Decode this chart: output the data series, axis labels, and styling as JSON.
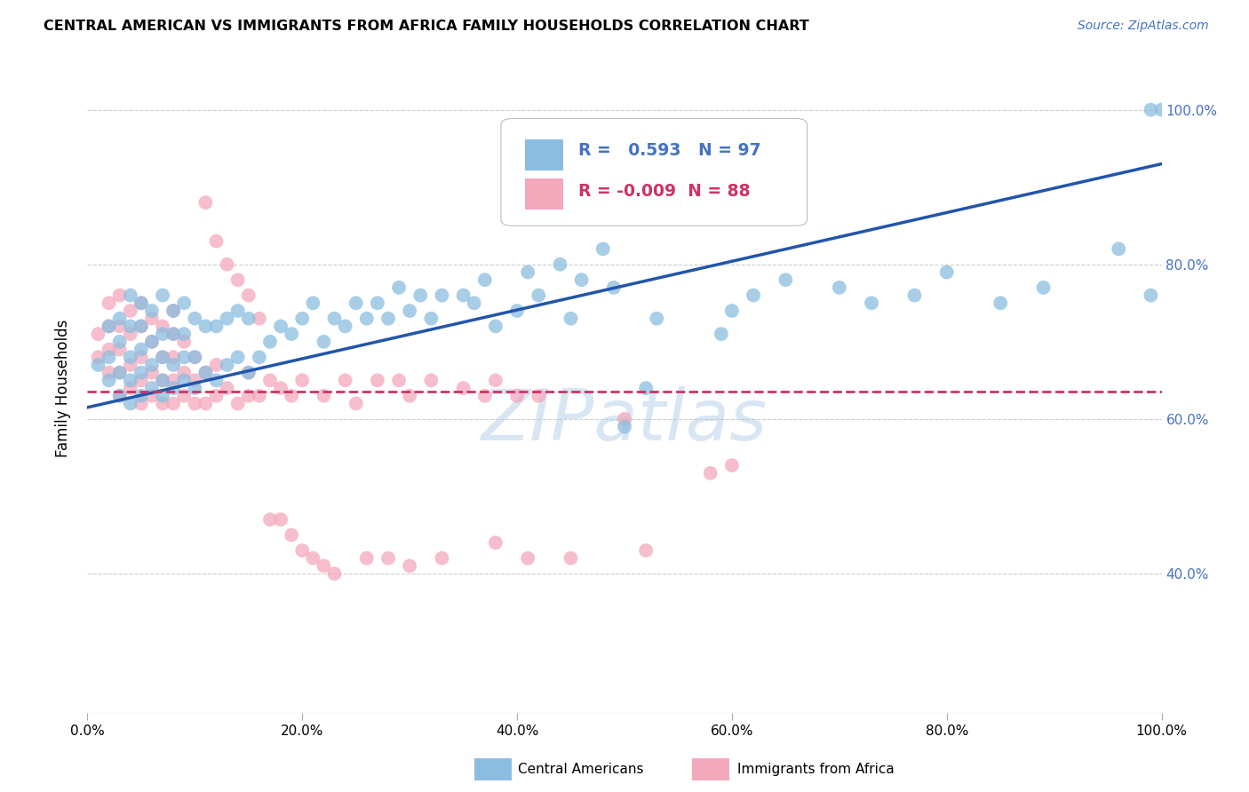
{
  "title": "CENTRAL AMERICAN VS IMMIGRANTS FROM AFRICA FAMILY HOUSEHOLDS CORRELATION CHART",
  "source": "Source: ZipAtlas.com",
  "ylabel": "Family Households",
  "x_tick_labels": [
    "0.0%",
    "20.0%",
    "40.0%",
    "60.0%",
    "80.0%",
    "100.0%"
  ],
  "y_tick_right": [
    "40.0%",
    "60.0%",
    "80.0%",
    "100.0%"
  ],
  "y_tick_vals": [
    0.4,
    0.6,
    0.8,
    1.0
  ],
  "x_range": [
    0.0,
    1.0
  ],
  "y_range": [
    0.22,
    1.06
  ],
  "blue_R": "0.593",
  "blue_N": "97",
  "pink_R": "-0.009",
  "pink_N": "88",
  "blue_color": "#8bbde0",
  "pink_color": "#f4a8bc",
  "blue_line_color": "#2255aa",
  "pink_line_color": "#cc3366",
  "watermark": "ZIPatlas",
  "legend_label_blue": "Central Americans",
  "legend_label_pink": "Immigrants from Africa",
  "blue_line_x0": 0.0,
  "blue_line_y0": 0.615,
  "blue_line_x1": 1.0,
  "blue_line_y1": 0.93,
  "pink_line_y": 0.636,
  "blue_x": [
    0.01,
    0.02,
    0.02,
    0.02,
    0.03,
    0.03,
    0.03,
    0.03,
    0.04,
    0.04,
    0.04,
    0.04,
    0.04,
    0.05,
    0.05,
    0.05,
    0.05,
    0.05,
    0.06,
    0.06,
    0.06,
    0.06,
    0.07,
    0.07,
    0.07,
    0.07,
    0.07,
    0.08,
    0.08,
    0.08,
    0.08,
    0.09,
    0.09,
    0.09,
    0.09,
    0.1,
    0.1,
    0.1,
    0.11,
    0.11,
    0.12,
    0.12,
    0.13,
    0.13,
    0.14,
    0.14,
    0.15,
    0.15,
    0.16,
    0.17,
    0.18,
    0.19,
    0.2,
    0.21,
    0.22,
    0.23,
    0.24,
    0.25,
    0.26,
    0.27,
    0.28,
    0.29,
    0.3,
    0.31,
    0.32,
    0.33,
    0.35,
    0.36,
    0.37,
    0.38,
    0.4,
    0.41,
    0.42,
    0.44,
    0.45,
    0.46,
    0.48,
    0.49,
    0.5,
    0.52,
    0.53,
    0.55,
    0.57,
    0.59,
    0.6,
    0.62,
    0.65,
    0.7,
    0.73,
    0.77,
    0.8,
    0.85,
    0.89,
    0.96,
    0.99,
    0.99,
    1.0
  ],
  "blue_y": [
    0.67,
    0.65,
    0.68,
    0.72,
    0.63,
    0.66,
    0.7,
    0.73,
    0.62,
    0.65,
    0.68,
    0.72,
    0.76,
    0.63,
    0.66,
    0.69,
    0.72,
    0.75,
    0.64,
    0.67,
    0.7,
    0.74,
    0.63,
    0.65,
    0.68,
    0.71,
    0.76,
    0.64,
    0.67,
    0.71,
    0.74,
    0.65,
    0.68,
    0.71,
    0.75,
    0.64,
    0.68,
    0.73,
    0.66,
    0.72,
    0.65,
    0.72,
    0.67,
    0.73,
    0.68,
    0.74,
    0.66,
    0.73,
    0.68,
    0.7,
    0.72,
    0.71,
    0.73,
    0.75,
    0.7,
    0.73,
    0.72,
    0.75,
    0.73,
    0.75,
    0.73,
    0.77,
    0.74,
    0.76,
    0.73,
    0.76,
    0.76,
    0.75,
    0.78,
    0.72,
    0.74,
    0.79,
    0.76,
    0.8,
    0.73,
    0.78,
    0.82,
    0.77,
    0.59,
    0.64,
    0.73,
    0.88,
    0.9,
    0.71,
    0.74,
    0.76,
    0.78,
    0.77,
    0.75,
    0.76,
    0.79,
    0.75,
    0.77,
    0.82,
    0.76,
    1.0,
    1.0
  ],
  "pink_x": [
    0.01,
    0.01,
    0.02,
    0.02,
    0.02,
    0.02,
    0.03,
    0.03,
    0.03,
    0.03,
    0.03,
    0.04,
    0.04,
    0.04,
    0.04,
    0.05,
    0.05,
    0.05,
    0.05,
    0.05,
    0.06,
    0.06,
    0.06,
    0.06,
    0.07,
    0.07,
    0.07,
    0.07,
    0.08,
    0.08,
    0.08,
    0.08,
    0.08,
    0.09,
    0.09,
    0.09,
    0.1,
    0.1,
    0.1,
    0.11,
    0.11,
    0.12,
    0.12,
    0.13,
    0.14,
    0.15,
    0.15,
    0.16,
    0.17,
    0.18,
    0.19,
    0.2,
    0.22,
    0.24,
    0.25,
    0.27,
    0.29,
    0.3,
    0.32,
    0.35,
    0.37,
    0.38,
    0.4,
    0.42,
    0.5,
    0.6,
    0.11,
    0.12,
    0.13,
    0.14,
    0.15,
    0.16,
    0.17,
    0.18,
    0.19,
    0.2,
    0.21,
    0.22,
    0.23,
    0.26,
    0.28,
    0.3,
    0.33,
    0.38,
    0.41,
    0.45,
    0.52,
    0.58
  ],
  "pink_y": [
    0.68,
    0.71,
    0.66,
    0.69,
    0.72,
    0.75,
    0.63,
    0.66,
    0.69,
    0.72,
    0.76,
    0.64,
    0.67,
    0.71,
    0.74,
    0.62,
    0.65,
    0.68,
    0.72,
    0.75,
    0.63,
    0.66,
    0.7,
    0.73,
    0.62,
    0.65,
    0.68,
    0.72,
    0.62,
    0.65,
    0.68,
    0.71,
    0.74,
    0.63,
    0.66,
    0.7,
    0.62,
    0.65,
    0.68,
    0.62,
    0.66,
    0.63,
    0.67,
    0.64,
    0.62,
    0.63,
    0.66,
    0.63,
    0.65,
    0.64,
    0.63,
    0.65,
    0.63,
    0.65,
    0.62,
    0.65,
    0.65,
    0.63,
    0.65,
    0.64,
    0.63,
    0.65,
    0.63,
    0.63,
    0.6,
    0.54,
    0.88,
    0.83,
    0.8,
    0.78,
    0.76,
    0.73,
    0.47,
    0.47,
    0.45,
    0.43,
    0.42,
    0.41,
    0.4,
    0.42,
    0.42,
    0.41,
    0.42,
    0.44,
    0.42,
    0.42,
    0.43,
    0.53
  ]
}
